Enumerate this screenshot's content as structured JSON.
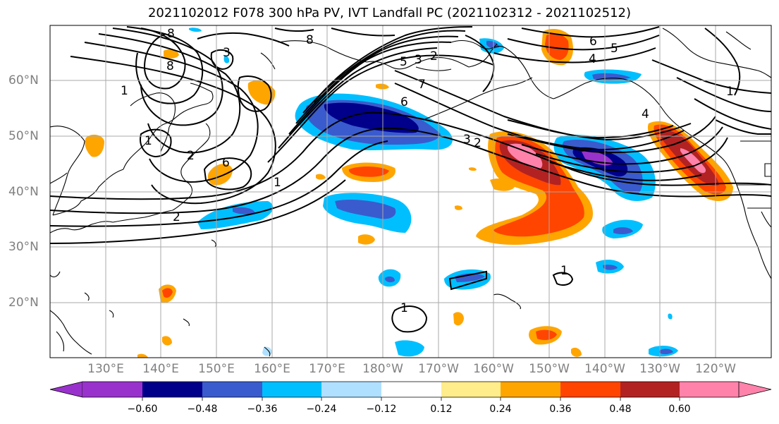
{
  "title": "2021102012 F078 300 hPa PV, IVT Landfall PC (2021102312 - 2021102512)",
  "lat_labels": [
    "60°N",
    "50°N",
    "40°N",
    "30°N",
    "20°N"
  ],
  "lon_labels": [
    "130°E",
    "140°E",
    "150°E",
    "160°E",
    "170°E",
    "180°W",
    "170°W",
    "160°W",
    "150°W",
    "140°W",
    "130°W",
    "120°W"
  ],
  "contour_labels": [
    "8",
    "8",
    "8",
    "3",
    "1",
    "1",
    "2",
    "6",
    "1",
    "2",
    "6",
    "5",
    "3",
    "2",
    "7",
    "3",
    "2",
    "6",
    "5",
    "4",
    "1",
    "4",
    "1",
    "1"
  ],
  "colorbar": {
    "colors": [
      "#9932cc",
      "#00008b",
      "#3a5bcd",
      "#00bfff",
      "#b0e0ff",
      "#ffffff",
      "#ffec8b",
      "#ffa500",
      "#ff4500",
      "#b22222",
      "#ff82ab"
    ],
    "ticks": [
      "−0.60",
      "−0.48",
      "−0.36",
      "−0.24",
      "−0.12",
      "0.12",
      "0.24",
      "0.36",
      "0.48",
      "0.60"
    ]
  }
}
